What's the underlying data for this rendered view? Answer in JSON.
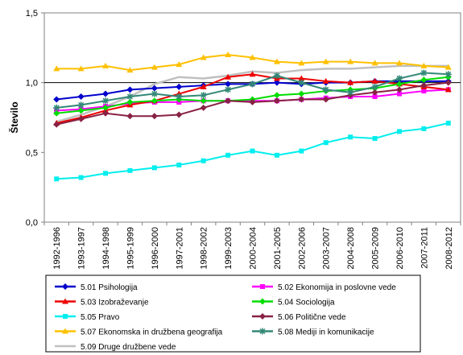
{
  "chart_data": {
    "type": "line",
    "ylabel": "Število",
    "ylim": [
      0,
      1.5
    ],
    "yticks": [
      "0,0",
      "0,5",
      "1,0",
      "1,5"
    ],
    "categories": [
      "1992-1996",
      "1993-1997",
      "1994-1998",
      "1995-1999",
      "1996-2000",
      "1997-2001",
      "1998-2002",
      "1999-2003",
      "2000-2004",
      "2001-2005",
      "2002-2006",
      "2003-2007",
      "2004-2008",
      "2005-2009",
      "2006-2010",
      "2007-2011",
      "2008-2012"
    ],
    "reference_line": 1.0,
    "legend_position": "bottom",
    "series": [
      {
        "name": "5.01 Psihologija",
        "color": "#0000CC",
        "marker": "diamond",
        "values": [
          0.88,
          0.9,
          0.92,
          0.95,
          0.96,
          0.97,
          0.98,
          0.99,
          0.99,
          1.0,
          0.99,
          1.0,
          1.0,
          1.01,
          1.01,
          1.01,
          1.01
        ]
      },
      {
        "name": "5.02 Ekonomija in poslovne vede",
        "color": "#FF00FF",
        "marker": "square",
        "values": [
          0.8,
          0.81,
          0.83,
          0.85,
          0.86,
          0.86,
          0.87,
          0.87,
          0.87,
          0.87,
          0.88,
          0.89,
          0.9,
          0.9,
          0.92,
          0.94,
          0.95
        ]
      },
      {
        "name": "5.03 Izobraževanje",
        "color": "#EE0000",
        "marker": "triangle",
        "values": [
          0.71,
          0.75,
          0.8,
          0.84,
          0.87,
          0.92,
          0.97,
          1.04,
          1.06,
          1.03,
          1.03,
          1.01,
          1.0,
          1.01,
          0.99,
          0.97,
          0.95
        ]
      },
      {
        "name": "5.04 Sociologija",
        "color": "#00DD00",
        "marker": "diamond",
        "values": [
          0.78,
          0.8,
          0.82,
          0.86,
          0.87,
          0.88,
          0.87,
          0.87,
          0.88,
          0.91,
          0.92,
          0.94,
          0.95,
          0.96,
          0.99,
          1.02,
          1.04
        ]
      },
      {
        "name": "5.05 Pravo",
        "color": "#00EEEE",
        "marker": "square",
        "values": [
          0.31,
          0.32,
          0.35,
          0.37,
          0.39,
          0.41,
          0.44,
          0.48,
          0.51,
          0.48,
          0.51,
          0.57,
          0.61,
          0.6,
          0.65,
          0.67,
          0.71
        ]
      },
      {
        "name": "5.06 Politične vede",
        "color": "#882244",
        "marker": "diamond",
        "values": [
          0.7,
          0.74,
          0.78,
          0.76,
          0.76,
          0.77,
          0.82,
          0.87,
          0.86,
          0.87,
          0.88,
          0.88,
          0.91,
          0.93,
          0.95,
          0.98,
          1.0
        ]
      },
      {
        "name": "5.07 Ekonomska in družbena geografija",
        "color": "#FFC000",
        "marker": "triangle",
        "values": [
          1.1,
          1.1,
          1.12,
          1.09,
          1.11,
          1.13,
          1.18,
          1.2,
          1.18,
          1.15,
          1.14,
          1.15,
          1.15,
          1.14,
          1.14,
          1.12,
          1.11
        ]
      },
      {
        "name": "5.08 Mediji in komunikacije",
        "color": "#338877",
        "marker": "asterisk",
        "values": [
          0.82,
          0.84,
          0.87,
          0.9,
          0.92,
          0.9,
          0.91,
          0.95,
          0.99,
          1.05,
          1.0,
          0.95,
          0.93,
          0.97,
          1.03,
          1.07,
          1.06
        ]
      },
      {
        "name": "5.09 Druge družbene vede",
        "color": "#C0C0C0",
        "marker": "none",
        "values": [
          0.72,
          0.77,
          0.83,
          0.9,
          0.99,
          1.04,
          1.03,
          1.05,
          1.08,
          1.07,
          1.09,
          1.1,
          1.1,
          1.11,
          1.12,
          1.12,
          1.12
        ]
      }
    ]
  }
}
